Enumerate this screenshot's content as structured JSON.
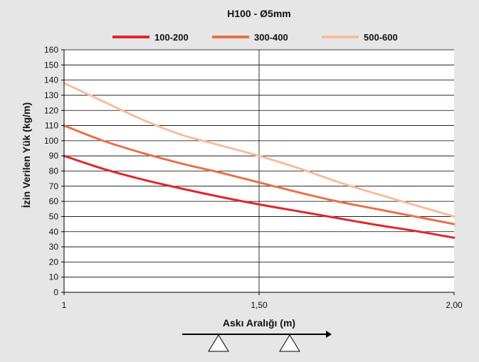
{
  "chart_data": {
    "type": "line",
    "title": "H100 - Ø5mm",
    "xlabel": "Askı Aralığı (m)",
    "ylabel": "İzin Verilen Yük (kg/m)",
    "xlim": [
      1,
      2
    ],
    "ylim": [
      0,
      160
    ],
    "x_ticks": [
      {
        "value": 1,
        "label": "1"
      },
      {
        "value": 1.5,
        "label": "1,50"
      },
      {
        "value": 2,
        "label": "2,00"
      }
    ],
    "y_ticks": [
      0,
      10,
      20,
      30,
      40,
      50,
      60,
      70,
      80,
      90,
      100,
      110,
      120,
      130,
      140,
      150,
      160
    ],
    "grid": {
      "horizontal": true,
      "vertical_at": [
        1.5
      ]
    },
    "legend_position": "top",
    "background_color": "#e6e6e6",
    "plot_background_color": "#ffffff",
    "series": [
      {
        "name": "100-200",
        "color": "#e0262d",
        "x": [
          1.0,
          1.1,
          1.2,
          1.3,
          1.4,
          1.5,
          1.6,
          1.7,
          1.8,
          1.9,
          2.0
        ],
        "values": [
          90,
          81.5,
          74.5,
          68.5,
          63,
          58,
          53.5,
          49,
          44.5,
          40.5,
          36
        ]
      },
      {
        "name": "300-400",
        "color": "#ea6f4d",
        "x": [
          1.0,
          1.1,
          1.2,
          1.3,
          1.4,
          1.5,
          1.6,
          1.7,
          1.8,
          1.9,
          2.0
        ],
        "values": [
          110,
          100,
          92,
          85,
          79,
          72.5,
          66,
          60,
          55,
          50,
          45
        ]
      },
      {
        "name": "500-600",
        "color": "#f6bd9e",
        "x": [
          1.0,
          1.1,
          1.2,
          1.3,
          1.4,
          1.5,
          1.6,
          1.7,
          1.8,
          1.9,
          2.0
        ],
        "values": [
          138,
          126,
          114,
          104,
          97,
          90,
          82,
          73,
          65,
          57.5,
          50
        ]
      }
    ]
  }
}
